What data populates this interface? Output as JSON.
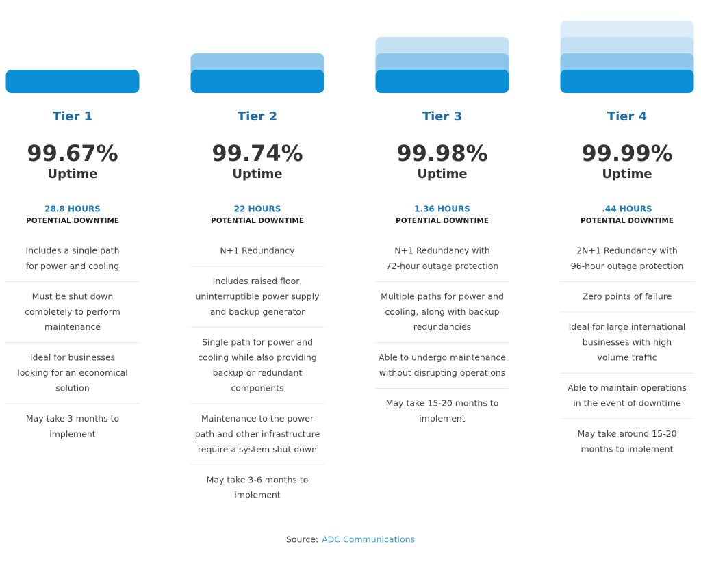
{
  "tiers": [
    {
      "name": "Tier 1",
      "uptime": "99.67%",
      "uptime_label": "Uptime",
      "hours": "28.8 HOURS",
      "downtime_label": "POTENTIAL DOWNTIME",
      "features": [
        [
          "Includes a single path",
          "for power and cooling"
        ],
        [
          "Must be shut down",
          "completely to perform",
          "maintenance"
        ],
        [
          "Ideal for businesses",
          "looking for an economical",
          "solution"
        ],
        [
          "May take 3 months to",
          "implement"
        ]
      ]
    },
    {
      "name": "Tier 2",
      "uptime": "99.74%",
      "uptime_label": "Uptime",
      "hours": "22 HOURS",
      "downtime_label": "POTENTIAL DOWNTIME",
      "features": [
        [
          "N+1 Redundancy"
        ],
        [
          "Includes raised floor,",
          "uninterruptible power supply",
          "and backup generator"
        ],
        [
          "Single path for power and",
          "cooling while also providing",
          "backup or redundant",
          "components"
        ],
        [
          "Maintenance to the power",
          "path and other infrastructure",
          "require a system shut down"
        ],
        [
          "May take 3-6 months to",
          "implement"
        ]
      ]
    },
    {
      "name": "Tier 3",
      "uptime": "99.98%",
      "uptime_label": "Uptime",
      "hours": "1.36 HOURS",
      "downtime_label": "POTENTIAL DOWNTIME",
      "features": [
        [
          "N+1 Redundancy with",
          "72-hour outage protection"
        ],
        [
          "Multiple paths for power and",
          "cooling, along with backup",
          "redundancies"
        ],
        [
          "Able to undergo maintenance",
          "without disrupting operations"
        ],
        [
          "May take 15-20 months to",
          "implement"
        ]
      ]
    },
    {
      "name": "Tier 4",
      "uptime": "99.99%",
      "uptime_label": "Uptime",
      "hours": ".44 HOURS",
      "downtime_label": "POTENTIAL DOWNTIME",
      "features": [
        [
          "2N+1 Redundancy with",
          "96-hour outage protection"
        ],
        [
          "Zero points of failure"
        ],
        [
          "Ideal for large international",
          "businesses with high",
          "volume traffic"
        ],
        [
          "Able to maintain operations",
          "in the event of downtime"
        ],
        [
          "May take around 15-20",
          "months to implement"
        ]
      ]
    }
  ],
  "source": {
    "label": "Source:",
    "link": "ADC Communications"
  }
}
